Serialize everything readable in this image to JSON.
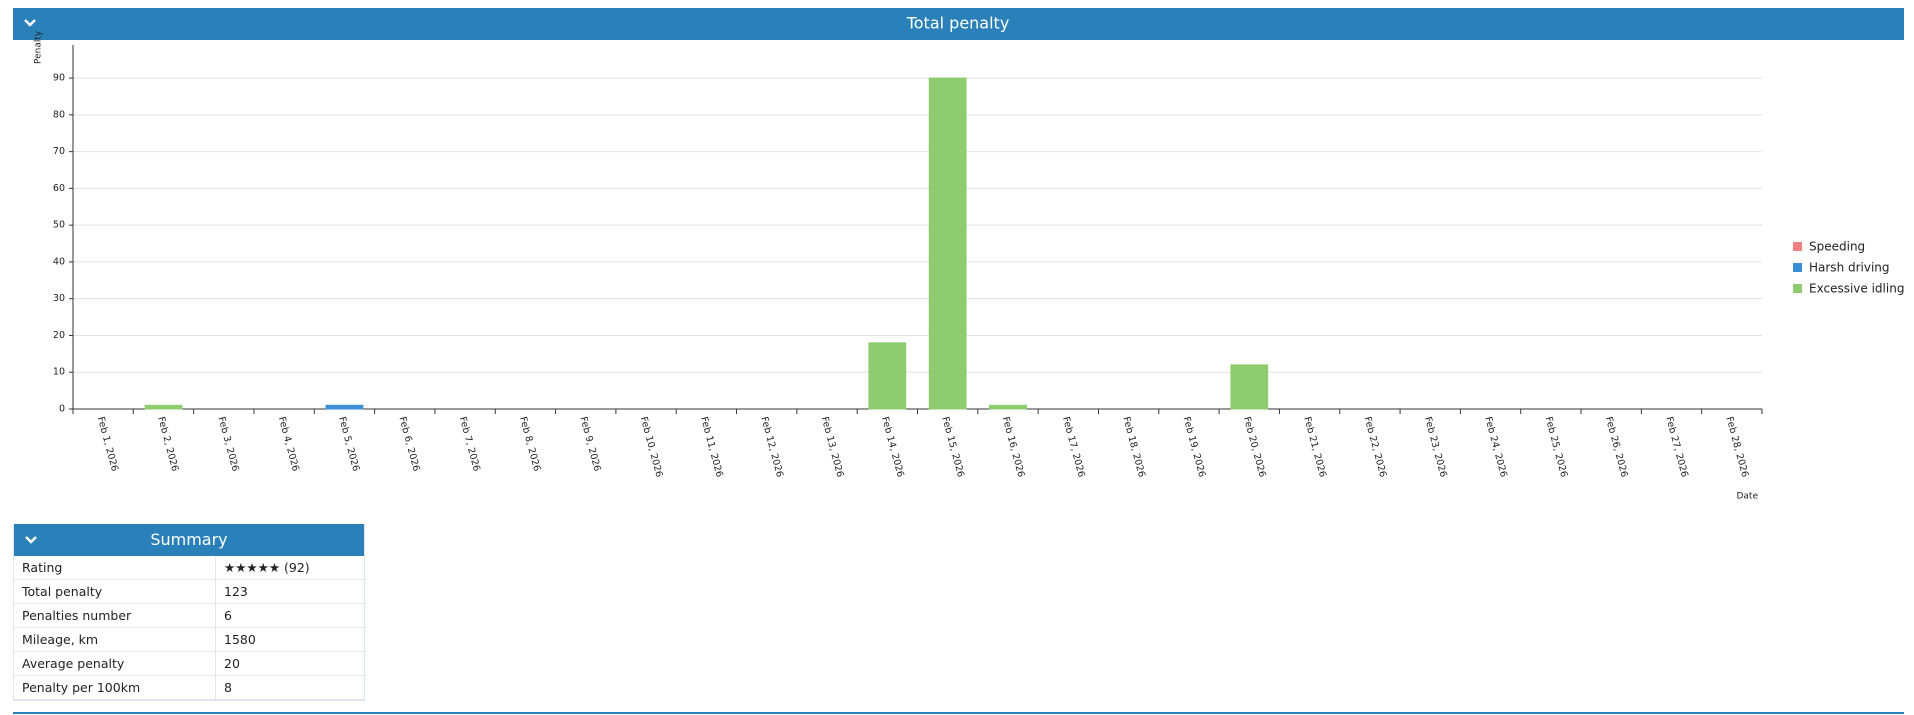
{
  "chart_data": {
    "type": "bar",
    "stacked": true,
    "title": "Total penalty",
    "x_label": "Date",
    "y_label": "Penalty",
    "categories": [
      "Feb 1, 2026",
      "Feb 2, 2026",
      "Feb 3, 2026",
      "Feb 4, 2026",
      "Feb 5, 2026",
      "Feb 6, 2026",
      "Feb 7, 2026",
      "Feb 8, 2026",
      "Feb 9, 2026",
      "Feb 10, 2026",
      "Feb 11, 2026",
      "Feb 12, 2026",
      "Feb 13, 2026",
      "Feb 14, 2026",
      "Feb 15, 2026",
      "Feb 16, 2026",
      "Feb 17, 2026",
      "Feb 18, 2026",
      "Feb 19, 2026",
      "Feb 20, 2026",
      "Feb 21, 2026",
      "Feb 22, 2026",
      "Feb 23, 2026",
      "Feb 24, 2026",
      "Feb 25, 2026",
      "Feb 26, 2026",
      "Feb 27, 2026",
      "Feb 28, 2026"
    ],
    "series": [
      {
        "name": "Speeding",
        "color": "#f08080",
        "values": [
          0,
          0,
          0,
          0,
          0,
          0,
          0,
          0,
          0,
          0,
          0,
          0,
          0,
          0,
          0,
          0,
          0,
          0,
          0,
          0,
          0,
          0,
          0,
          0,
          0,
          0,
          0,
          0
        ]
      },
      {
        "name": "Harsh driving",
        "color": "#3a8fd8",
        "values": [
          0,
          0,
          0,
          0,
          1,
          0,
          0,
          0,
          0,
          0,
          0,
          0,
          0,
          0,
          0,
          0,
          0,
          0,
          0,
          0,
          0,
          0,
          0,
          0,
          0,
          0,
          0,
          0
        ]
      },
      {
        "name": "Excessive idling",
        "color": "#8fcc6f",
        "values": [
          0,
          1,
          0,
          0,
          0,
          0,
          0,
          0,
          0,
          0,
          0,
          0,
          0,
          18,
          90,
          1,
          0,
          0,
          0,
          12,
          0,
          0,
          0,
          0,
          0,
          0,
          0,
          0
        ]
      }
    ],
    "ylim": [
      0,
      99
    ],
    "yticks": [
      0,
      10,
      20,
      30,
      40,
      50,
      60,
      70,
      80,
      90
    ],
    "grid": true,
    "legend": "right"
  },
  "summary": {
    "title": "Summary",
    "rows": [
      [
        "Rating",
        "★★★★★ (92)"
      ],
      [
        "Total penalty",
        "123"
      ],
      [
        "Penalties number",
        "6"
      ],
      [
        "Mileage, km",
        "1580"
      ],
      [
        "Average penalty",
        "20"
      ],
      [
        "Penalty per 100km",
        "8"
      ]
    ]
  }
}
